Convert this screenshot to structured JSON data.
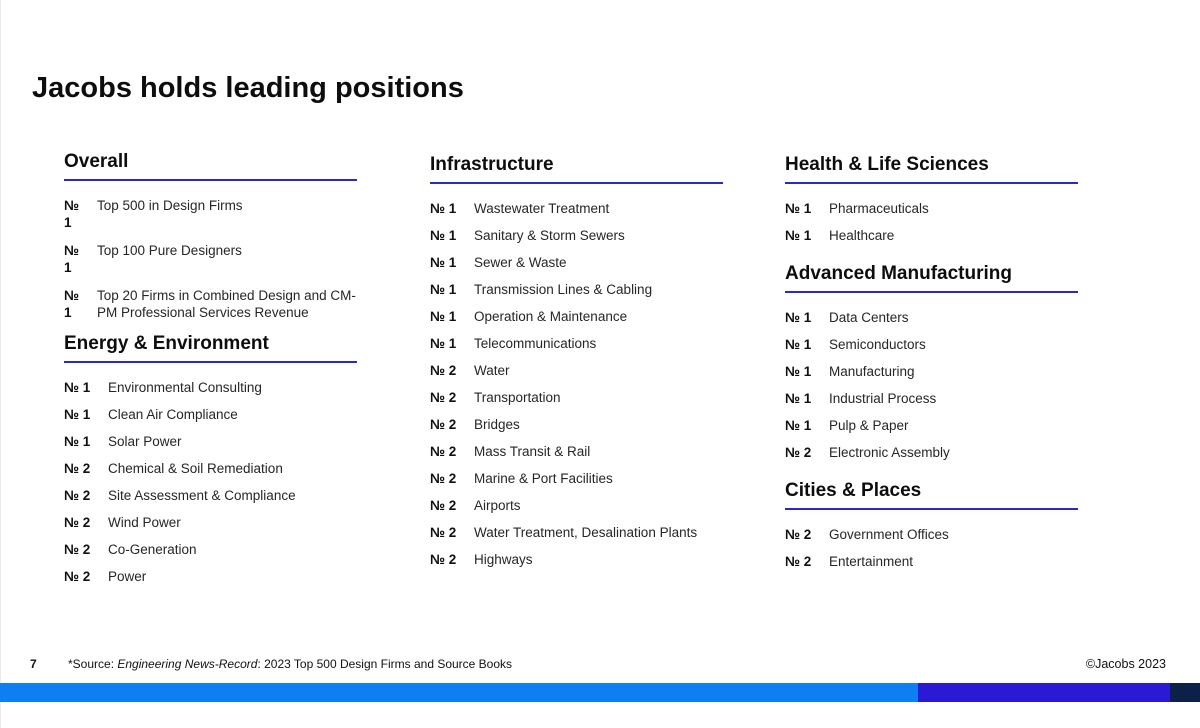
{
  "slide": {
    "title": "Jacobs holds leading positions",
    "page_number": "7",
    "source": {
      "prefix": "*Source: ",
      "italic": "Engineering News-Record",
      "suffix": ": 2023 Top 500 Design Firms and Source Books"
    },
    "copyright": "©Jacobs 2023"
  },
  "colors": {
    "accent_underline": "#2929c8",
    "bar_bright_blue": "#0d7ff2",
    "bar_indigo": "#2a1ad6",
    "bar_navy": "#0c2147"
  },
  "columns": [
    {
      "sections": [
        {
          "heading": "Overall",
          "items": [
            {
              "rank": "№ 1",
              "label": "Top 500 in Design Firms"
            },
            {
              "rank": "№ 1",
              "label": "Top 100 Pure Designers"
            },
            {
              "rank": "№ 1",
              "label": "Top 20 Firms in Combined Design and CM-PM Professional Services Revenue"
            }
          ]
        },
        {
          "heading": "Energy & Environment",
          "items": [
            {
              "rank": "№ 1",
              "label": "Environmental Consulting"
            },
            {
              "rank": "№ 1",
              "label": "Clean Air Compliance"
            },
            {
              "rank": "№ 1",
              "label": "Solar Power"
            },
            {
              "rank": "№ 2",
              "label": "Chemical & Soil Remediation"
            },
            {
              "rank": "№ 2",
              "label": "Site Assessment & Compliance"
            },
            {
              "rank": "№ 2",
              "label": "Wind Power"
            },
            {
              "rank": "№ 2",
              "label": "Co-Generation"
            },
            {
              "rank": "№ 2",
              "label": "Power"
            }
          ]
        }
      ]
    },
    {
      "sections": [
        {
          "heading": "Infrastructure",
          "items": [
            {
              "rank": "№ 1",
              "label": "Wastewater Treatment"
            },
            {
              "rank": "№ 1",
              "label": "Sanitary & Storm Sewers"
            },
            {
              "rank": "№ 1",
              "label": "Sewer & Waste"
            },
            {
              "rank": "№ 1",
              "label": "Transmission Lines & Cabling"
            },
            {
              "rank": "№ 1",
              "label": "Operation & Maintenance"
            },
            {
              "rank": "№ 1",
              "label": "Telecommunications"
            },
            {
              "rank": "№ 2",
              "label": "Water"
            },
            {
              "rank": "№ 2",
              "label": "Transportation"
            },
            {
              "rank": "№ 2",
              "label": "Bridges"
            },
            {
              "rank": "№ 2",
              "label": "Mass Transit & Rail"
            },
            {
              "rank": "№ 2",
              "label": "Marine & Port Facilities"
            },
            {
              "rank": "№ 2",
              "label": "Airports"
            },
            {
              "rank": "№ 2",
              "label": "Water Treatment, Desalination Plants"
            },
            {
              "rank": "№ 2",
              "label": "Highways"
            }
          ]
        }
      ]
    },
    {
      "sections": [
        {
          "heading": "Health & Life Sciences",
          "items": [
            {
              "rank": "№ 1",
              "label": "Pharmaceuticals"
            },
            {
              "rank": "№ 1",
              "label": "Healthcare"
            }
          ]
        },
        {
          "heading": "Advanced Manufacturing",
          "items": [
            {
              "rank": "№ 1",
              "label": "Data Centers"
            },
            {
              "rank": "№ 1",
              "label": "Semiconductors"
            },
            {
              "rank": "№ 1",
              "label": "Manufacturing"
            },
            {
              "rank": "№ 1",
              "label": "Industrial Process"
            },
            {
              "rank": "№ 1",
              "label": "Pulp & Paper"
            },
            {
              "rank": "№ 2",
              "label": "Electronic Assembly"
            }
          ]
        },
        {
          "heading": "Cities & Places",
          "items": [
            {
              "rank": "№ 2",
              "label": "Government Offices"
            },
            {
              "rank": "№ 2",
              "label": "Entertainment"
            }
          ]
        }
      ]
    }
  ]
}
